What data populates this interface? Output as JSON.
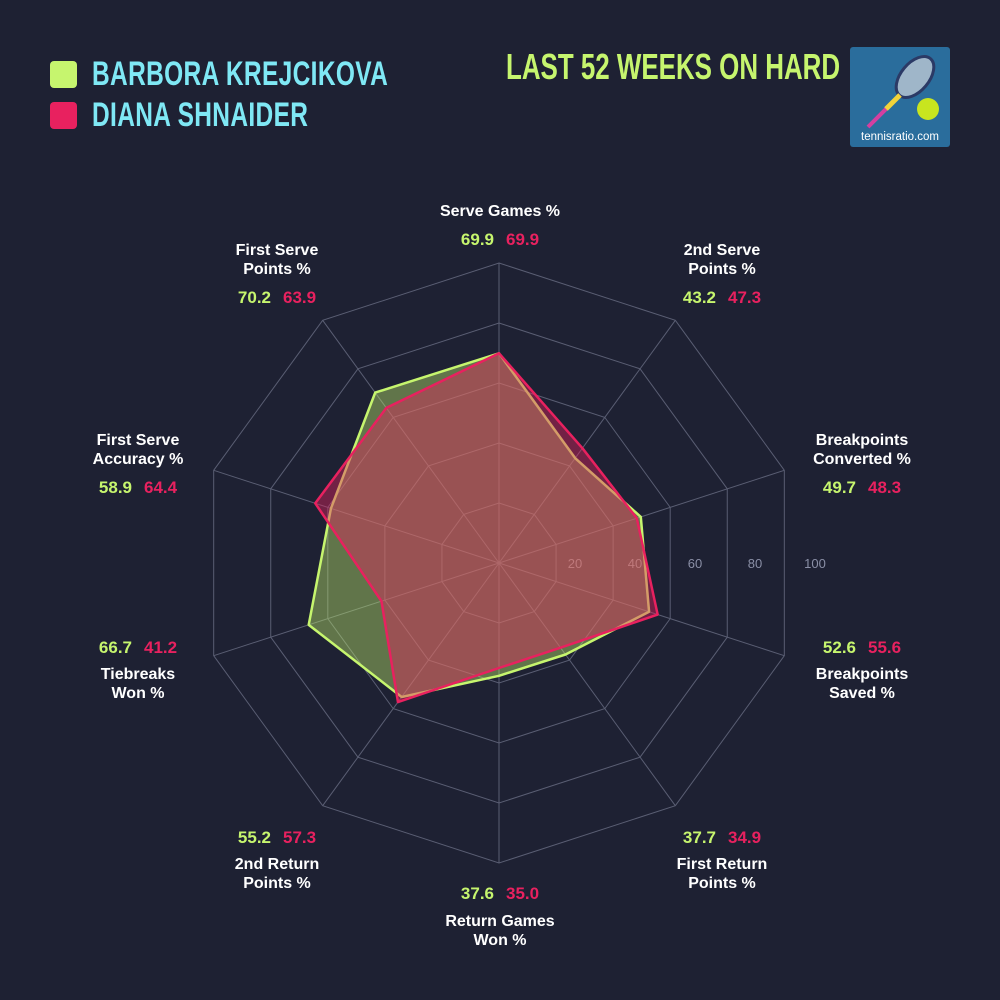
{
  "title": "LAST 52 WEEKS ON HARD",
  "logo_text": "tennisratio.com",
  "colors": {
    "background": "#1e2133",
    "player1": "#c6f56e",
    "player2": "#e8215f",
    "name_text": "#7fe8f5",
    "grid": "#5a5e73"
  },
  "chart_data": {
    "type": "radar",
    "range": [
      0,
      100
    ],
    "ticks": [
      20,
      40,
      60,
      80,
      100
    ],
    "grid": "decagon",
    "legend": "top-left",
    "categories": [
      "Serve Games %",
      "2nd Serve Points %",
      "Breakpoints Converted %",
      "Breakpoints Saved %",
      "First Return Points %",
      "Return Games Won %",
      "2nd Return Points %",
      "Tiebreaks Won %",
      "First Serve Accuracy %",
      "First Serve Points %"
    ],
    "category_lines": [
      [
        "Serve Games %"
      ],
      [
        "2nd Serve",
        "Points %"
      ],
      [
        "Breakpoints",
        "Converted %"
      ],
      [
        "Breakpoints",
        "Saved %"
      ],
      [
        "First Return",
        "Points %"
      ],
      [
        "Return Games",
        "Won %"
      ],
      [
        "2nd Return",
        "Points %"
      ],
      [
        "Tiebreaks",
        "Won %"
      ],
      [
        "First Serve",
        "Accuracy %"
      ],
      [
        "First Serve",
        "Points %"
      ]
    ],
    "series": [
      {
        "name": "BARBORA KREJCIKOVA",
        "values": [
          69.9,
          43.2,
          49.7,
          52.6,
          37.7,
          37.6,
          55.2,
          66.7,
          58.9,
          70.2
        ]
      },
      {
        "name": "DIANA SHNAIDER",
        "values": [
          69.9,
          47.3,
          48.3,
          55.6,
          34.9,
          35.0,
          57.3,
          41.2,
          64.4,
          63.9
        ]
      }
    ]
  }
}
